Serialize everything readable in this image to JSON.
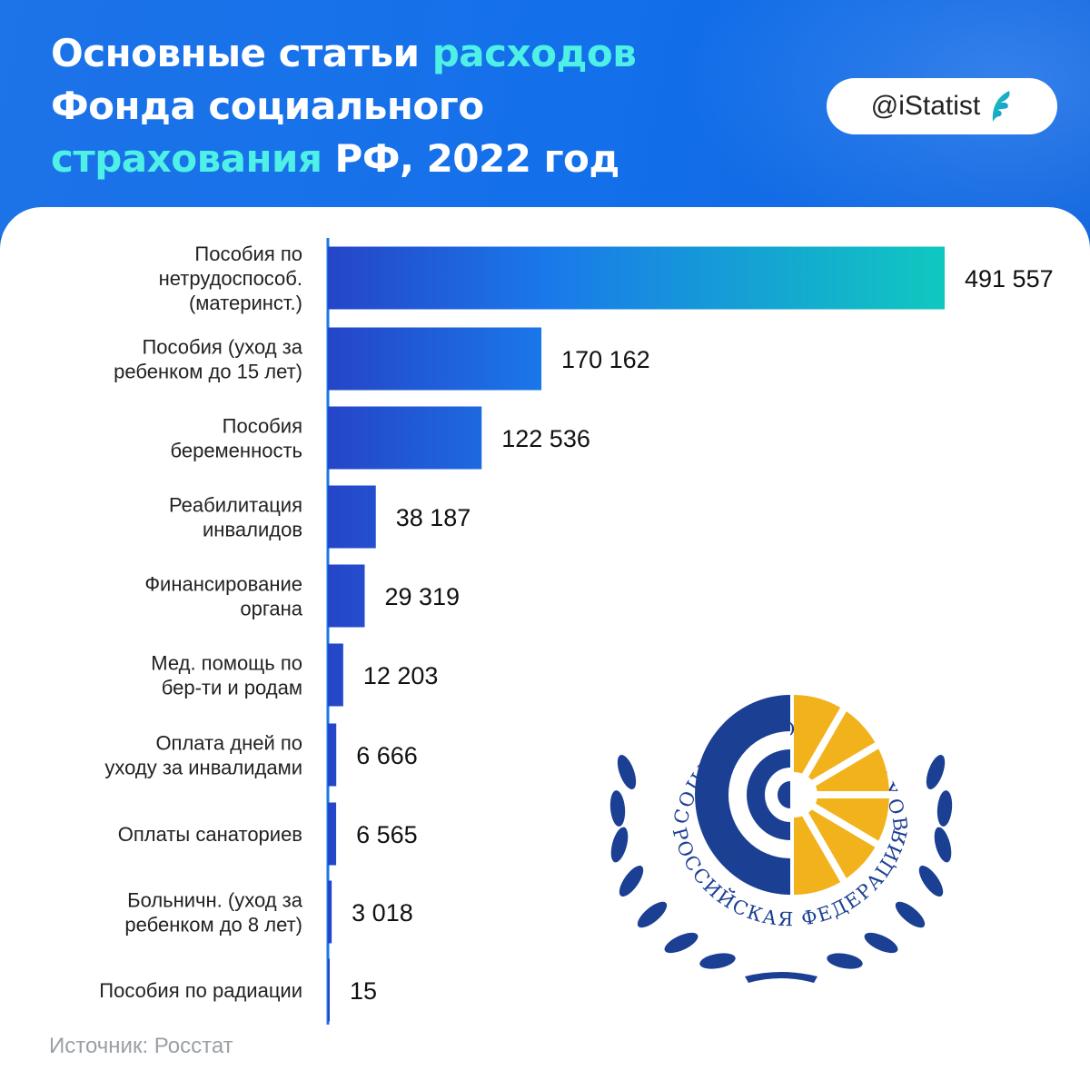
{
  "header": {
    "title_parts": [
      {
        "text": "Основные статьи ",
        "hl": false
      },
      {
        "text": "расходов",
        "hl": true
      },
      {
        "text": "\n",
        "hl": false
      },
      {
        "text": "Фонда социального",
        "hl": false
      },
      {
        "text": "\n",
        "hl": false
      },
      {
        "text": "страхования",
        "hl": true
      },
      {
        "text": " РФ, 2022 год",
        "hl": false
      }
    ],
    "brand": "@iStatist"
  },
  "colors": {
    "title_highlight": "#4ff0e6",
    "bar_start": "#2545c8",
    "bar_mid": "#1a78ea",
    "bar_end": "#10c8c0"
  },
  "chart_data": {
    "type": "bar",
    "orientation": "horizontal",
    "categories": [
      [
        "Пособия по",
        "нетрудоспособ.",
        "(материнст.)"
      ],
      [
        "Пособия (уход за",
        "ребенком до 15 лет)"
      ],
      [
        "Пособия",
        "беременность"
      ],
      [
        "Реабилитация",
        "инвалидов"
      ],
      [
        "Финансирование",
        "органа"
      ],
      [
        "Мед. помощь по",
        "бер-ти и родам"
      ],
      [
        "Оплата дней по",
        "уходу за инвалидами"
      ],
      [
        "Оплаты санаториев"
      ],
      [
        "Больничн. (уход за",
        "ребенком до 8 лет)"
      ],
      [
        "Пособия по радиации"
      ]
    ],
    "values": [
      491557,
      170162,
      122536,
      38187,
      29319,
      12203,
      6666,
      6565,
      3018,
      15
    ],
    "value_labels": [
      "491 557",
      "170 162",
      "122 536",
      "38 187",
      "29 319",
      "12 203",
      "6 666",
      "6 565",
      "3 018",
      "15"
    ]
  },
  "logo": {
    "top_text": "ФОНД СОЦИАЛЬНОГО СТРАХОВАНИЯ",
    "bottom_text": "РОССИЙСКАЯ ФЕДЕРАЦИЯ",
    "icon": "fss-emblem"
  },
  "footer": {
    "source": "Источник: Росстат"
  }
}
